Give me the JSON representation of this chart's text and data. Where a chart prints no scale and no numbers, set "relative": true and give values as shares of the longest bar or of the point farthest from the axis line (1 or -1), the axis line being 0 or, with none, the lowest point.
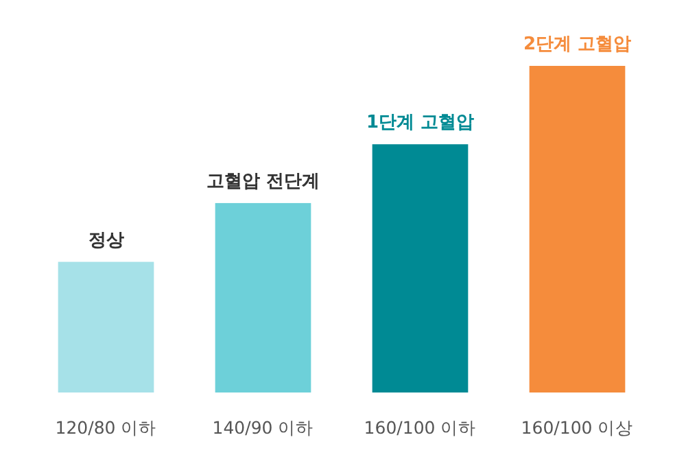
{
  "chart_data": {
    "type": "bar",
    "relative": true,
    "categories": [
      "120/80 이하",
      "140/90 이하",
      "160/100 이하",
      "160/100 이상"
    ],
    "values": [
      0.4,
      0.58,
      0.76,
      1
    ],
    "colors": [
      "#a6e1e8",
      "#6dd0d9",
      "#008a94",
      "#f58c3c"
    ],
    "annotations": [
      {
        "text": "정상",
        "x": "120/80 이하",
        "y": 0.4
      },
      {
        "text": "고혈압 전단계",
        "x": "140/90 이하",
        "y": 0.58
      },
      {
        "text": "1단계 고혈압",
        "x": "160/100 이하",
        "y": 0.76
      },
      {
        "text": "2단계 고혈압",
        "x": "160/100 이상",
        "y": 1
      }
    ]
  }
}
